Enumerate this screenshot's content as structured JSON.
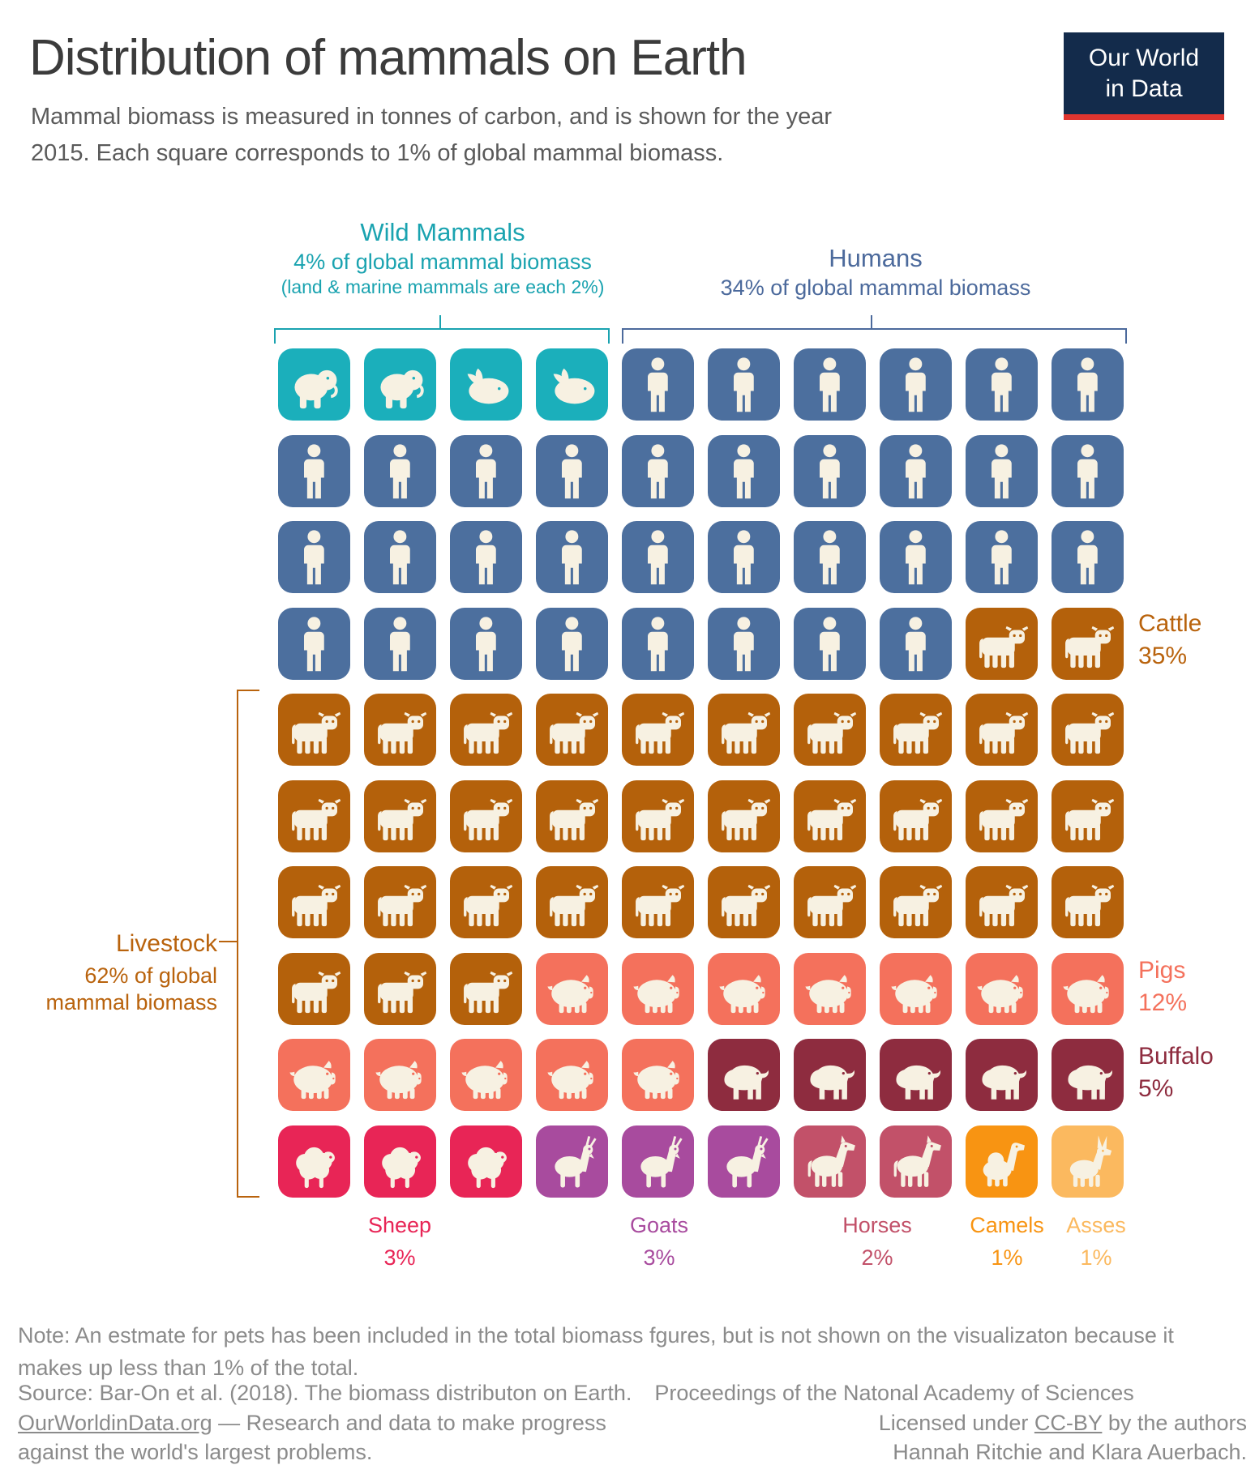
{
  "header": {
    "title": "Distribution of mammals on Earth",
    "subtitle_line1": "Mammal biomass is measured in tonnes of carbon, and is shown for the year",
    "subtitle_line2": "2015. Each square corresponds to 1% of global mammal biomass.",
    "logo": {
      "line1": "Our World",
      "line2": "in Data",
      "bg": "#132b4b",
      "accent": "#e0352f"
    }
  },
  "icon_color": "#F7F1E2",
  "groups": {
    "wild": {
      "label": "Wild Mammals",
      "sub": "4% of global mammal biomass",
      "sub2": "(land & marine mammals are each 2%)",
      "text": "#1AA3B0",
      "tile": "#1BAFBB"
    },
    "humans": {
      "label": "Humans",
      "sub": "34% of global mammal biomass",
      "text": "#4C6A9C",
      "tile": "#4C6F9E"
    },
    "livestock": {
      "label": "Livestock",
      "sub": "62% of global mammal biomass",
      "text": "#B9630D",
      "tile": "#B9630D"
    },
    "cattle": {
      "label": "Cattle",
      "pct": "35%",
      "text": "#B9630D",
      "tile": "#B4610B"
    },
    "pigs": {
      "label": "Pigs",
      "pct": "12%",
      "text": "#F4715C",
      "tile": "#F4715C"
    },
    "buffalo": {
      "label": "Buffalo",
      "pct": "5%",
      "text": "#8E2C3F",
      "tile": "#8E2C3F"
    },
    "sheep": {
      "label": "Sheep",
      "pct": "3%",
      "text": "#E82556",
      "tile": "#E82556"
    },
    "goats": {
      "label": "Goats",
      "pct": "3%",
      "text": "#A84B9E",
      "tile": "#A84B9E"
    },
    "horses": {
      "label": "Horses",
      "pct": "2%",
      "text": "#C25169",
      "tile": "#C25169"
    },
    "camels": {
      "label": "Camels",
      "pct": "1%",
      "text": "#F89412",
      "tile": "#F89412"
    },
    "asses": {
      "label": "Asses",
      "pct": "1%",
      "text": "#FBB95F",
      "tile": "#FBB95F"
    }
  },
  "grid": {
    "rows": [
      [
        {
          "icon": "elephant",
          "group": "wild",
          "n": 2
        },
        {
          "icon": "whale",
          "group": "wild",
          "n": 2
        },
        {
          "icon": "person",
          "group": "humans",
          "n": 6
        }
      ],
      [
        {
          "icon": "person",
          "group": "humans",
          "n": 10
        }
      ],
      [
        {
          "icon": "person",
          "group": "humans",
          "n": 10
        }
      ],
      [
        {
          "icon": "person",
          "group": "humans",
          "n": 8
        },
        {
          "icon": "cow",
          "group": "cattle",
          "n": 2
        }
      ],
      [
        {
          "icon": "cow",
          "group": "cattle",
          "n": 10
        }
      ],
      [
        {
          "icon": "cow",
          "group": "cattle",
          "n": 10
        }
      ],
      [
        {
          "icon": "cow",
          "group": "cattle",
          "n": 10
        }
      ],
      [
        {
          "icon": "cow",
          "group": "cattle",
          "n": 3
        },
        {
          "icon": "pig",
          "group": "pigs",
          "n": 7
        }
      ],
      [
        {
          "icon": "pig",
          "group": "pigs",
          "n": 5
        },
        {
          "icon": "buffalo",
          "group": "buffalo",
          "n": 5
        }
      ],
      [
        {
          "icon": "sheep",
          "group": "sheep",
          "n": 3
        },
        {
          "icon": "goat",
          "group": "goats",
          "n": 3
        },
        {
          "icon": "horse",
          "group": "horses",
          "n": 2
        },
        {
          "icon": "camel",
          "group": "camels",
          "n": 1
        },
        {
          "icon": "donkey",
          "group": "asses",
          "n": 1
        }
      ]
    ]
  },
  "chart_data": {
    "type": "waffle",
    "title": "Distribution of mammals on Earth",
    "unit": "% of global mammal biomass (tonnes of carbon), year 2015, 1 square = 1%",
    "categories": [
      "Wild Mammals",
      "Humans",
      "Cattle",
      "Pigs",
      "Buffalo",
      "Sheep",
      "Goats",
      "Horses",
      "Camels",
      "Asses"
    ],
    "values": [
      4,
      34,
      35,
      12,
      5,
      3,
      3,
      2,
      1,
      1
    ],
    "annotations": [
      "Wild Mammals: land & marine mammals are each 2%",
      "Livestock: 62% of global mammal biomass"
    ],
    "grid_size": "10x10"
  },
  "footer": {
    "note_line1": "Note: An estmate for pets has been included in the total biomass fgures, but is not shown on the visualizaton because it",
    "note_line2": "makes up less than 1% of the total.",
    "source_main": "Source: Bar-On et al. (2018). The biomass distributon on Earth.",
    "source_journal": "Proceedings of the Natonal Academy of Sciences",
    "owid_link": "OurWorldinData.org",
    "owid_rest": " — Research and data to make progress against the world's largest problems.",
    "license_pre": "Licensed under ",
    "license_link": "CC-BY",
    "license_post": " by the authors",
    "authors": "Hannah Ritchie and Klara Auerbach."
  }
}
